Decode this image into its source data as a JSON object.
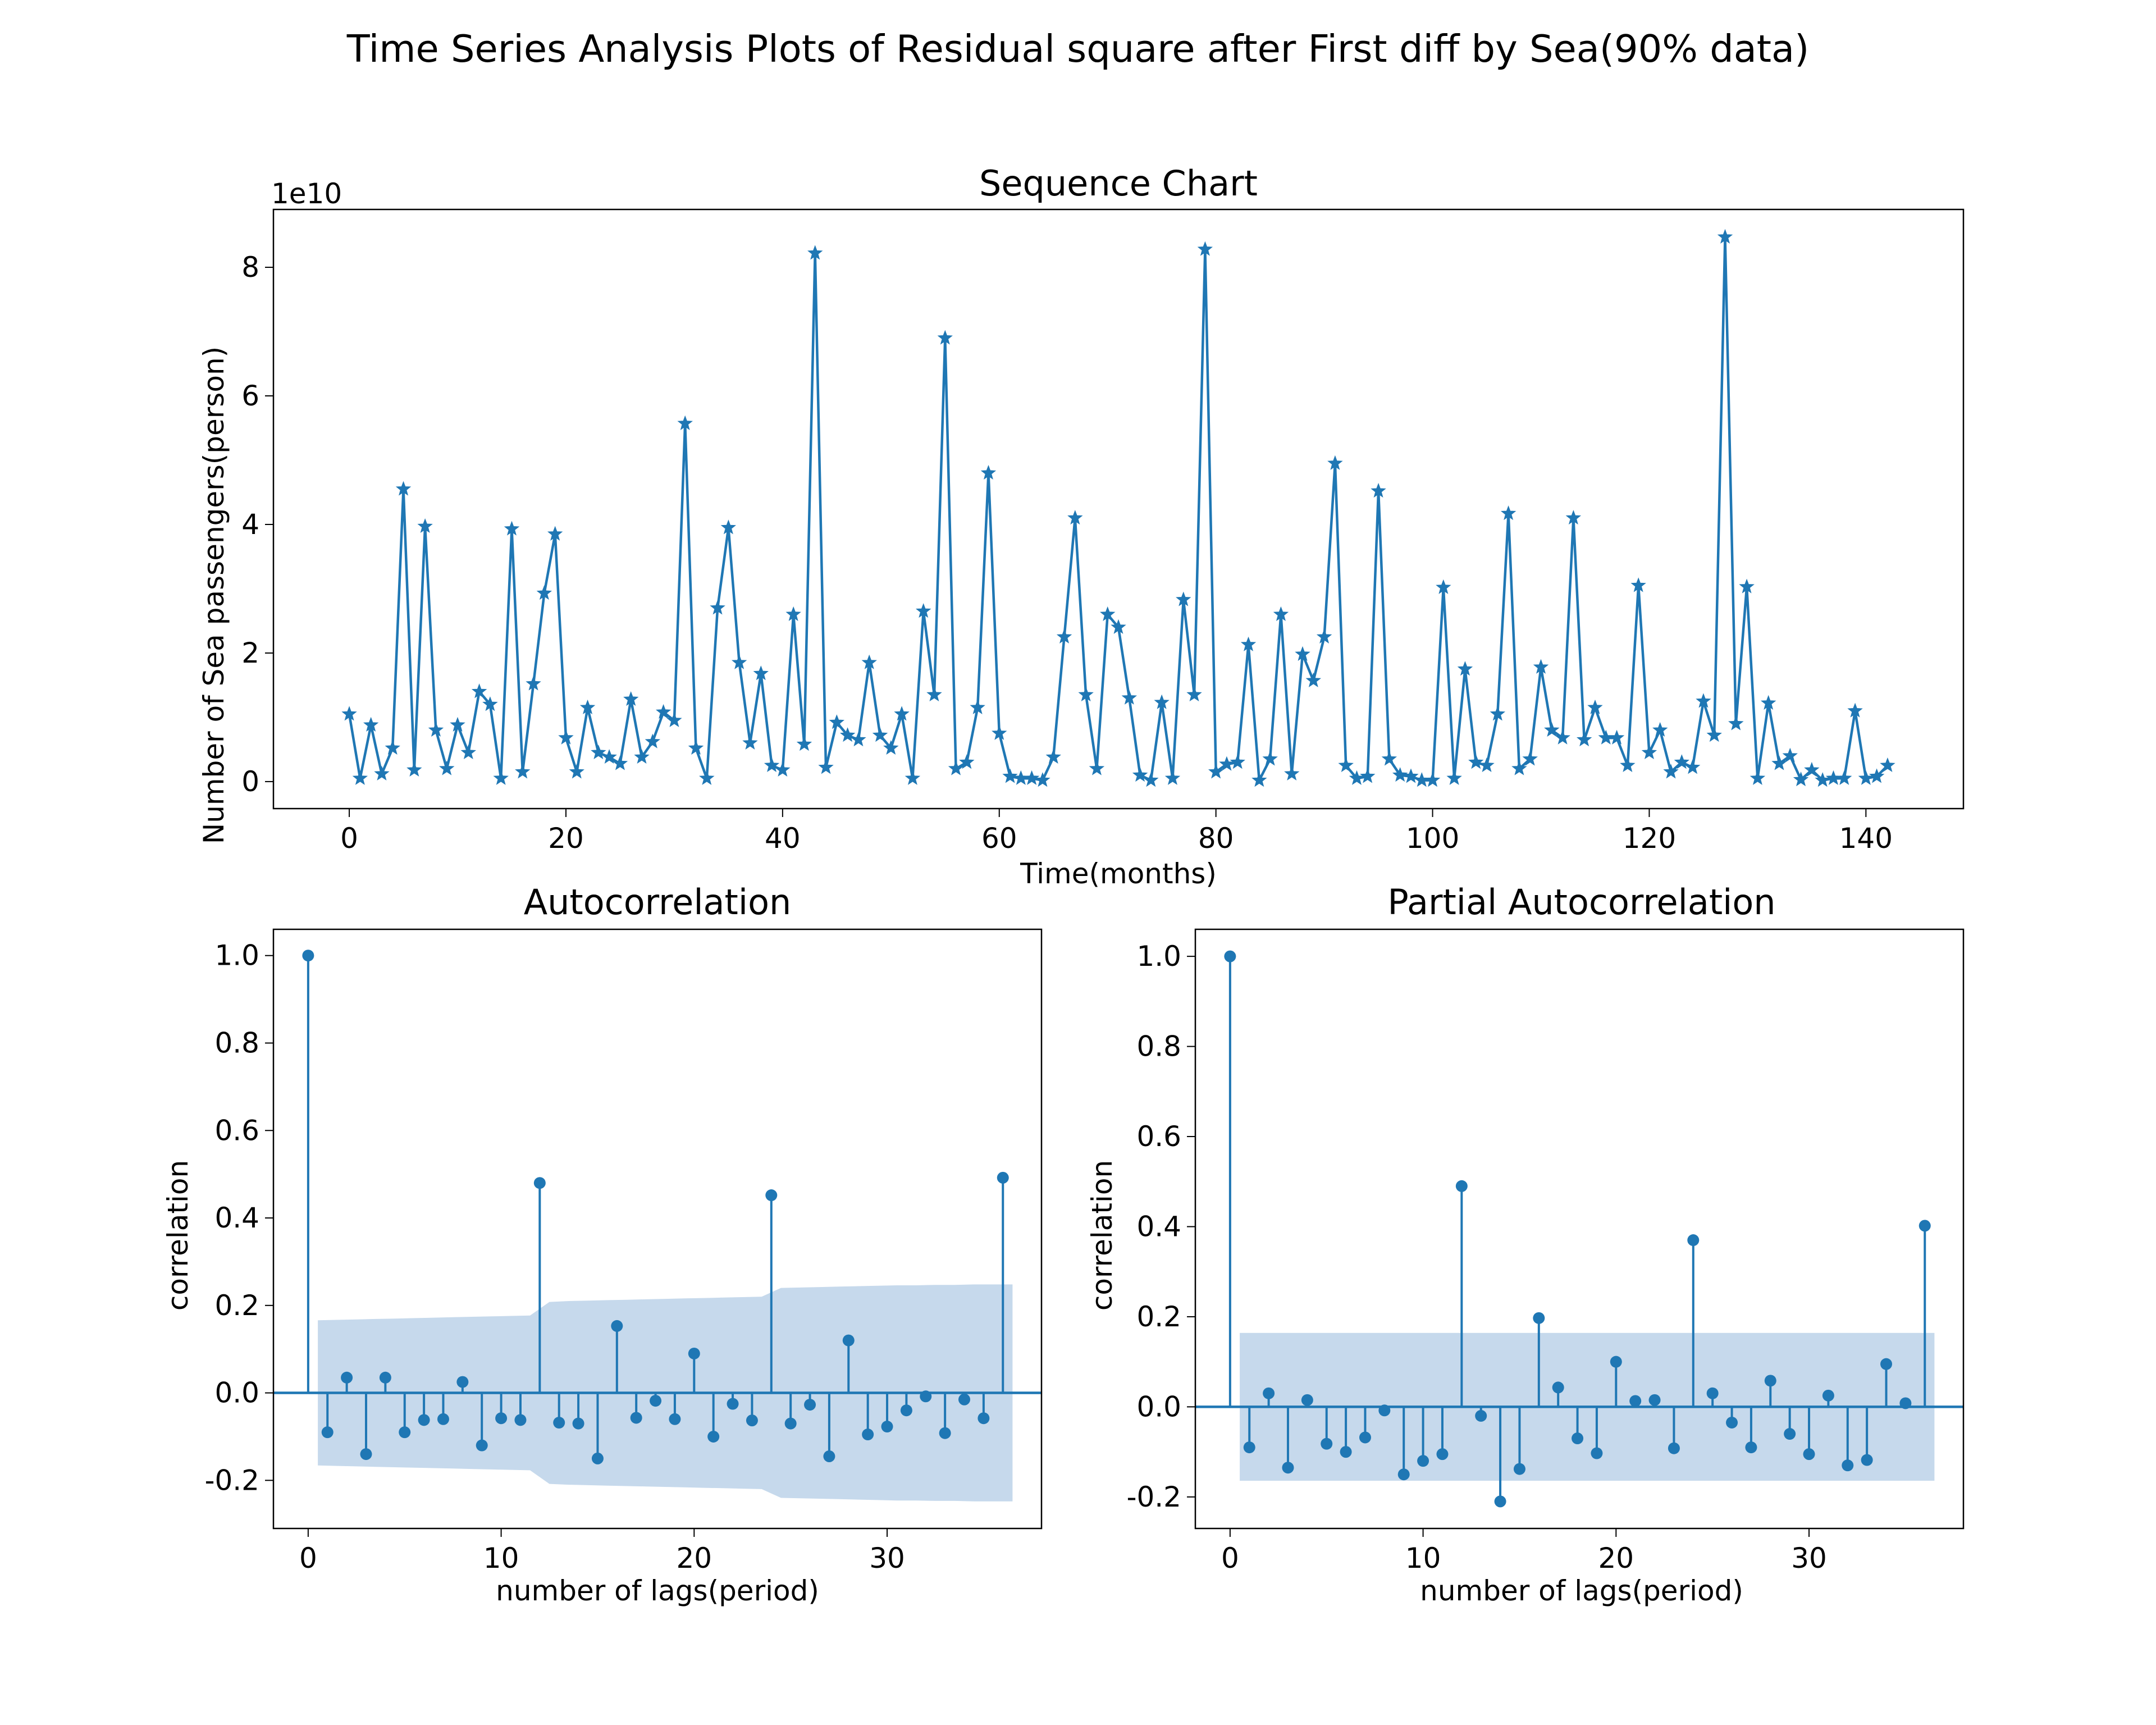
{
  "suptitle": "Time Series Analysis Plots of Residual square after First diff by Sea(90% data)",
  "colors": {
    "line": "#1f77b4",
    "band": "#c6d9ec",
    "axis": "#000000"
  },
  "chart_data": [
    {
      "type": "line",
      "title": "Sequence Chart",
      "xlabel": "Time(months)",
      "ylabel": "Number of Sea passengers(person)",
      "offset_label": "1e10",
      "marker": "star",
      "xlim": [
        -7,
        149
      ],
      "ylim": [
        -0.42,
        8.9
      ],
      "xticks": [
        0,
        20,
        40,
        60,
        80,
        100,
        120,
        140
      ],
      "yticks": [
        0,
        2,
        4,
        6,
        8
      ],
      "y_unit_scale": 10000000000.0,
      "x": "0..142",
      "series": [
        {
          "values": [
            1.05,
            0.05,
            0.88,
            0.12,
            0.52,
            4.55,
            0.18,
            3.97,
            0.8,
            0.2,
            0.88,
            0.45,
            1.4,
            1.2,
            0.05,
            3.93,
            0.15,
            1.52,
            2.93,
            3.85,
            0.68,
            0.15,
            1.15,
            0.45,
            0.38,
            0.28,
            1.28,
            0.38,
            0.62,
            1.08,
            0.95,
            5.57,
            0.52,
            0.05,
            2.7,
            3.95,
            1.85,
            0.6,
            1.68,
            0.25,
            0.18,
            2.6,
            0.58,
            8.22,
            0.22,
            0.92,
            0.72,
            0.65,
            1.85,
            0.72,
            0.52,
            1.05,
            0.05,
            2.65,
            1.35,
            6.9,
            0.2,
            0.3,
            1.15,
            4.8,
            0.75,
            0.08,
            0.05,
            0.05,
            0.02,
            0.38,
            2.25,
            4.1,
            1.35,
            0.2,
            2.6,
            2.4,
            1.3,
            0.1,
            0.02,
            1.23,
            0.05,
            2.83,
            1.35,
            8.28,
            0.15,
            0.27,
            0.3,
            2.13,
            0.02,
            0.35,
            2.6,
            0.12,
            1.98,
            1.57,
            2.25,
            4.95,
            0.25,
            0.05,
            0.08,
            4.52,
            0.35,
            0.1,
            0.08,
            0.02,
            0.02,
            3.02,
            0.05,
            1.75,
            0.3,
            0.25,
            1.05,
            4.17,
            0.2,
            0.35,
            1.78,
            0.8,
            0.68,
            4.1,
            0.65,
            1.15,
            0.68,
            0.68,
            0.25,
            3.05,
            0.45,
            0.8,
            0.15,
            0.3,
            0.22,
            1.25,
            0.72,
            8.47,
            0.9,
            3.03,
            0.05,
            1.22,
            0.28,
            0.4,
            0.03,
            0.18,
            0.02,
            0.05,
            0.05,
            1.1,
            0.05,
            0.08,
            0.25
          ]
        }
      ]
    },
    {
      "type": "stem",
      "title": "Autocorrelation",
      "xlabel": "number of lags(period)",
      "ylabel": "correlation",
      "xlim": [
        -1.8,
        38
      ],
      "ylim": [
        -0.31,
        1.06
      ],
      "xticks": [
        0,
        10,
        20,
        30
      ],
      "yticks": [
        -0.2,
        0.0,
        0.2,
        0.4,
        0.6,
        0.8,
        1.0
      ],
      "ytick_labels": [
        "-0.2",
        "0.0",
        "0.2",
        "0.4",
        "0.6",
        "0.8",
        "1.0"
      ],
      "lags": "0..36",
      "values": [
        1.0,
        -0.09,
        0.035,
        -0.14,
        0.035,
        -0.09,
        -0.062,
        -0.06,
        0.025,
        -0.12,
        -0.058,
        -0.062,
        0.48,
        -0.068,
        -0.07,
        -0.15,
        0.153,
        -0.057,
        -0.018,
        -0.06,
        0.09,
        -0.1,
        -0.025,
        -0.063,
        0.452,
        -0.07,
        -0.027,
        -0.145,
        0.12,
        -0.095,
        -0.077,
        -0.04,
        -0.008,
        -0.092,
        -0.015,
        -0.058,
        0.492
      ],
      "confidence_band": [
        0.165,
        0.166,
        0.167,
        0.168,
        0.169,
        0.17,
        0.171,
        0.172,
        0.173,
        0.174,
        0.175,
        0.176,
        0.177,
        0.208,
        0.21,
        0.211,
        0.212,
        0.213,
        0.214,
        0.215,
        0.216,
        0.217,
        0.218,
        0.219,
        0.22,
        0.24,
        0.241,
        0.242,
        0.243,
        0.244,
        0.245,
        0.246,
        0.246,
        0.247,
        0.247,
        0.248,
        0.248
      ]
    },
    {
      "type": "stem",
      "title": "Partial Autocorrelation",
      "xlabel": "number of lags(period)",
      "ylabel": "correlation",
      "xlim": [
        -1.8,
        38
      ],
      "ylim": [
        -0.27,
        1.06
      ],
      "xticks": [
        0,
        10,
        20,
        30
      ],
      "yticks": [
        -0.2,
        0.0,
        0.2,
        0.4,
        0.6,
        0.8,
        1.0
      ],
      "ytick_labels": [
        "-0.2",
        "0.0",
        "0.2",
        "0.4",
        "0.6",
        "0.8",
        "1.0"
      ],
      "lags": "0..36",
      "values": [
        1.0,
        -0.09,
        0.03,
        -0.135,
        0.015,
        -0.082,
        -0.1,
        -0.068,
        -0.008,
        -0.15,
        -0.12,
        -0.105,
        0.49,
        -0.02,
        -0.21,
        -0.138,
        0.197,
        0.043,
        -0.07,
        -0.103,
        0.1,
        0.013,
        0.015,
        -0.092,
        0.37,
        0.03,
        -0.035,
        -0.09,
        0.058,
        -0.06,
        -0.105,
        0.025,
        -0.13,
        -0.118,
        0.095,
        0.008,
        0.402
      ],
      "confidence_band": 0.164
    }
  ]
}
